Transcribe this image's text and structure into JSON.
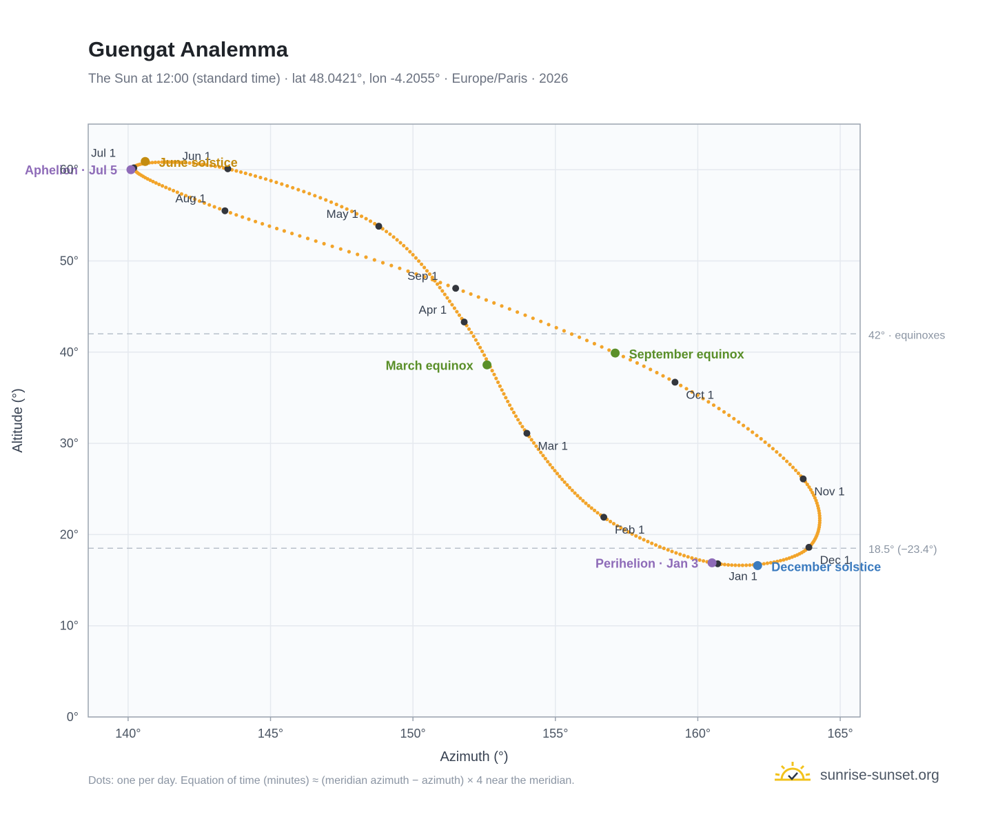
{
  "header": {
    "title": "Guengat Analemma",
    "subtitle": "The Sun at 12:00 (standard time) · lat 48.0421°, lon -4.2055° · Europe/Paris · 2026"
  },
  "footer": {
    "note": "Dots: one per day. Equation of time (minutes) ≈ (meridian azimuth − azimuth) × 4 near the meridian.",
    "brand": "sunrise-sunset.org"
  },
  "chart_data": {
    "type": "scatter",
    "title": "Guengat Analemma",
    "xlabel": "Azimuth (°)",
    "ylabel": "Altitude (°)",
    "xlim": [
      138.6,
      165.7
    ],
    "ylim": [
      0,
      65
    ],
    "xticks": [
      140,
      145,
      150,
      155,
      160,
      165
    ],
    "yticks": [
      0,
      10,
      20,
      30,
      40,
      50,
      60
    ],
    "tick_suffix": "°",
    "grid": true,
    "colors": {
      "curve": "#f2a42a",
      "month_dot": "#33363d",
      "grid": "#e5e9ef",
      "plot_bg": "#f9fbfd",
      "frame": "#9aa3af",
      "ref_line": "#b8c0ca"
    },
    "reference_lines": [
      {
        "y": 42,
        "label": "42° · equinoxes"
      },
      {
        "y": 18.5,
        "label": "18.5° (−23.4°)"
      }
    ],
    "month_markers": [
      {
        "label": "Jan 1",
        "x": 160.7,
        "y": 16.8
      },
      {
        "label": "Feb 1",
        "x": 156.7,
        "y": 21.9
      },
      {
        "label": "Mar 1",
        "x": 154.0,
        "y": 31.1
      },
      {
        "label": "Apr 1",
        "x": 151.8,
        "y": 43.3
      },
      {
        "label": "May 1",
        "x": 148.8,
        "y": 53.8
      },
      {
        "label": "Jun 1",
        "x": 143.5,
        "y": 60.1
      },
      {
        "label": "Jul 1",
        "x": 140.2,
        "y": 60.2
      },
      {
        "label": "Aug 1",
        "x": 143.4,
        "y": 55.5
      },
      {
        "label": "Sep 1",
        "x": 151.5,
        "y": 47.0
      },
      {
        "label": "Oct 1",
        "x": 159.2,
        "y": 36.7
      },
      {
        "label": "Nov 1",
        "x": 163.7,
        "y": 26.1
      },
      {
        "label": "Dec 1",
        "x": 163.9,
        "y": 18.6
      }
    ],
    "events": [
      {
        "label": "March equinox",
        "x": 152.6,
        "y": 38.6,
        "color": "#5a8f29"
      },
      {
        "label": "June solstice",
        "x": 140.6,
        "y": 60.9,
        "color": "#c48c0f"
      },
      {
        "label": "September equinox",
        "x": 157.1,
        "y": 39.9,
        "color": "#5a8f29"
      },
      {
        "label": "December solstice",
        "x": 162.1,
        "y": 16.6,
        "color": "#3b7bbf"
      },
      {
        "label": "Perihelion · Jan 3",
        "x": 160.5,
        "y": 16.9,
        "color": "#8e6bb8"
      },
      {
        "label": "Aphelion · Jul 5",
        "x": 140.1,
        "y": 60.0,
        "color": "#8e6bb8"
      }
    ]
  }
}
